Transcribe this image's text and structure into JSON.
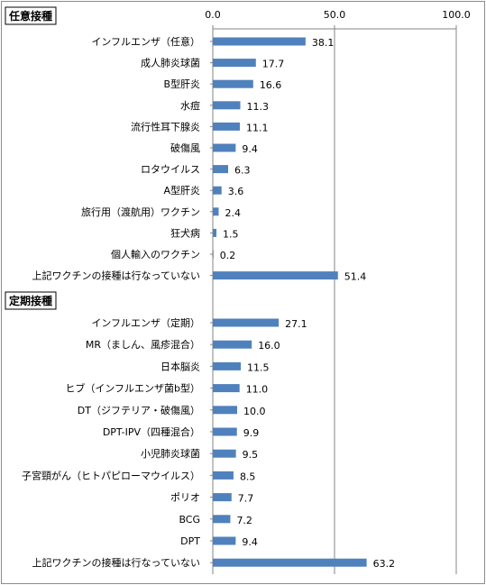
{
  "chart_data": {
    "type": "bar",
    "orientation": "horizontal",
    "xlim": [
      0,
      100
    ],
    "xticks": [
      "0.0",
      "50.0",
      "100.0"
    ],
    "grid": true,
    "bar_color": "#4f81bd",
    "groups": [
      {
        "title": "任意接種",
        "categories": [
          "インフルエンザ（任意）",
          "成人肺炎球菌",
          "B型肝炎",
          "水痘",
          "流行性耳下腺炎",
          "破傷風",
          "ロタウイルス",
          "A型肝炎",
          "旅行用（渡航用）ワクチン",
          "狂犬病",
          "個人輸入のワクチン",
          "上記ワクチンの接種は行なっていない"
        ],
        "values": [
          38.1,
          17.7,
          16.6,
          11.3,
          11.1,
          9.4,
          6.3,
          3.6,
          2.4,
          1.5,
          0.2,
          51.4
        ]
      },
      {
        "title": "定期接種",
        "categories": [
          "インフルエンザ（定期）",
          "MR（ましん、風疹混合）",
          "日本脳炎",
          "ヒブ（インフルエンザ菌b型）",
          "DT（ジフテリア・破傷風）",
          "DPT-IPV（四種混合）",
          "小児肺炎球菌",
          "子宮頸がん（ヒトパピローマウイルス）",
          "ポリオ",
          "BCG",
          "DPT",
          "上記ワクチンの接種は行なっていない"
        ],
        "values": [
          27.1,
          16.0,
          11.5,
          11.0,
          10.0,
          9.9,
          9.5,
          8.5,
          7.7,
          7.2,
          9.4,
          63.2
        ]
      }
    ]
  }
}
